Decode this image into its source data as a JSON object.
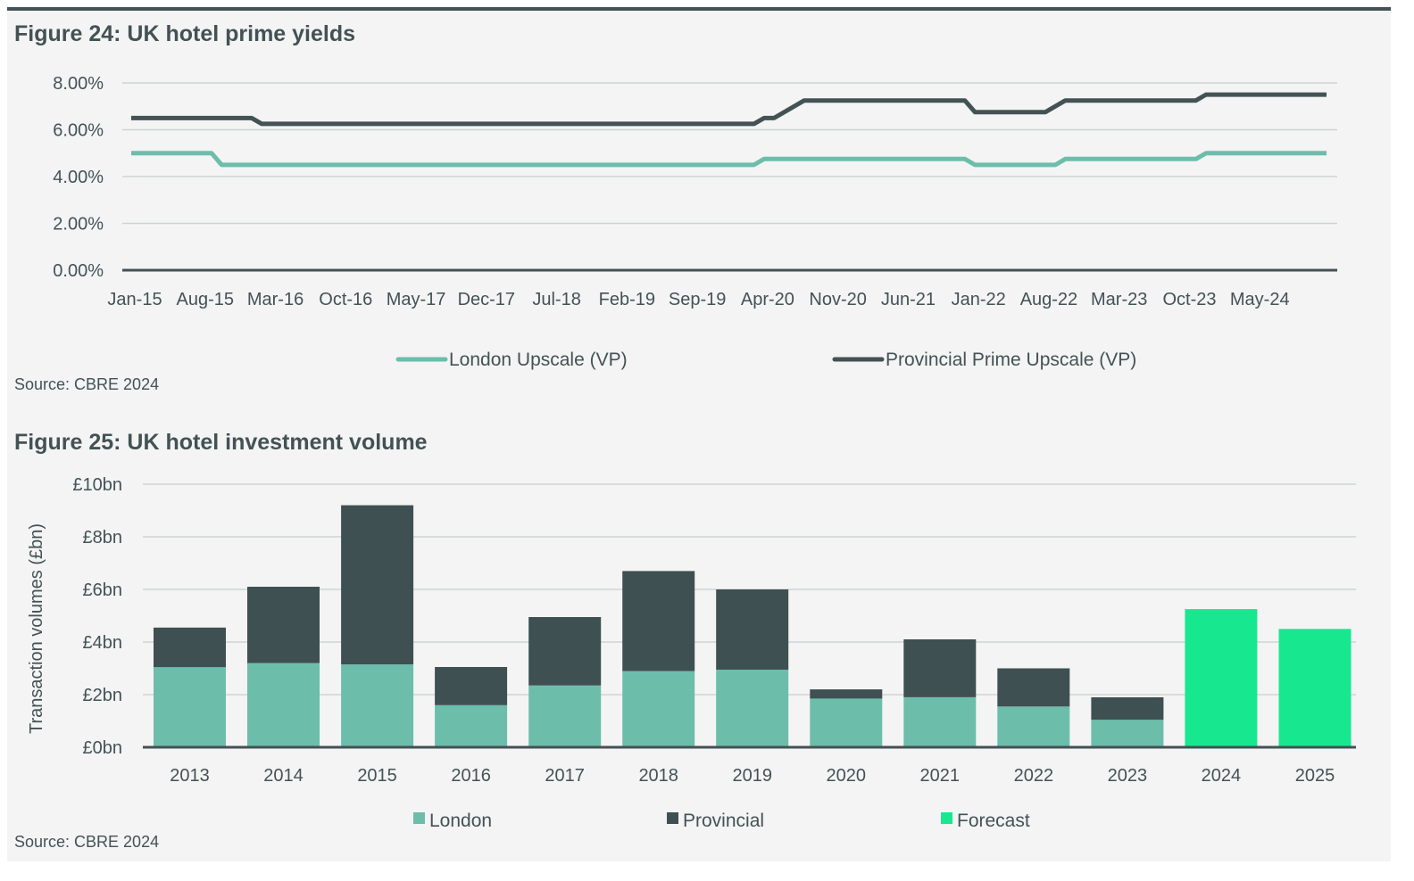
{
  "figure24": {
    "title": "Figure 24: UK hotel prime yields",
    "source": "Source: CBRE 2024"
  },
  "figure25": {
    "title": "Figure 25: UK hotel investment volume",
    "source": "Source: CBRE 2024"
  },
  "colors": {
    "london_line": "#6dbdab",
    "provincial_line": "#435254",
    "london_bar": "#6dbdab",
    "provincial_bar": "#3f5052",
    "forecast_bar": "#17e88f",
    "grid": "#cfd3d3",
    "axis": "#435254"
  },
  "chart_data": [
    {
      "type": "line",
      "title": "Figure 24: UK hotel prime yields",
      "xlabel": "",
      "ylabel": "",
      "x_tick_labels": [
        "Jan-15",
        "Aug-15",
        "Mar-16",
        "Oct-16",
        "May-17",
        "Dec-17",
        "Jul-18",
        "Feb-19",
        "Sep-19",
        "Apr-20",
        "Nov-20",
        "Jun-21",
        "Jan-22",
        "Aug-22",
        "Mar-23",
        "Oct-23",
        "May-24"
      ],
      "y_tick_labels": [
        "0.00%",
        "2.00%",
        "4.00%",
        "6.00%",
        "8.00%"
      ],
      "ylim": [
        0,
        8
      ],
      "x_range": [
        "Jan-15",
        "Dec-24"
      ],
      "grid": true,
      "legend_position": "bottom",
      "series": [
        {
          "name": "London Upscale (VP)",
          "color_key": "london_line",
          "points": [
            [
              "Jan-15",
              5.0
            ],
            [
              "Sep-15",
              5.0
            ],
            [
              "Oct-15",
              4.5
            ],
            [
              "Mar-20",
              4.5
            ],
            [
              "Apr-20",
              4.75
            ],
            [
              "Dec-21",
              4.75
            ],
            [
              "Jan-22",
              4.5
            ],
            [
              "Sep-22",
              4.5
            ],
            [
              "Oct-22",
              4.75
            ],
            [
              "Nov-23",
              4.75
            ],
            [
              "Dec-23",
              5.0
            ],
            [
              "Dec-24",
              5.0
            ]
          ]
        },
        {
          "name": "Provincial Prime Upscale (VP)",
          "color_key": "provincial_line",
          "points": [
            [
              "Jan-15",
              6.5
            ],
            [
              "Jan-16",
              6.5
            ],
            [
              "Feb-16",
              6.25
            ],
            [
              "Mar-20",
              6.25
            ],
            [
              "Apr-20",
              6.5
            ],
            [
              "May-20",
              6.5
            ],
            [
              "Aug-20",
              7.25
            ],
            [
              "Dec-21",
              7.25
            ],
            [
              "Jan-22",
              6.75
            ],
            [
              "Aug-22",
              6.75
            ],
            [
              "Oct-22",
              7.25
            ],
            [
              "Nov-23",
              7.25
            ],
            [
              "Dec-23",
              7.5
            ],
            [
              "Dec-24",
              7.5
            ]
          ]
        }
      ]
    },
    {
      "type": "bar",
      "stacked": true,
      "title": "Figure 25: UK hotel investment volume",
      "xlabel": "",
      "ylabel": "Transaction volumes (£bn)",
      "y_tick_labels": [
        "£0bn",
        "£2bn",
        "£4bn",
        "£6bn",
        "£8bn",
        "£10bn"
      ],
      "ylim": [
        0,
        10
      ],
      "grid": true,
      "legend_position": "bottom",
      "categories": [
        "2013",
        "2014",
        "2015",
        "2016",
        "2017",
        "2018",
        "2019",
        "2020",
        "2021",
        "2022",
        "2023",
        "2024",
        "2025"
      ],
      "series": [
        {
          "name": "London",
          "color_key": "london_bar",
          "values": [
            3.05,
            3.2,
            3.15,
            1.6,
            2.35,
            2.9,
            2.95,
            1.85,
            1.9,
            1.55,
            1.05,
            0,
            0
          ]
        },
        {
          "name": "Provincial",
          "color_key": "provincial_bar",
          "values": [
            1.5,
            2.9,
            6.05,
            1.45,
            2.6,
            3.8,
            3.05,
            0.35,
            2.2,
            1.45,
            0.85,
            0,
            0
          ]
        },
        {
          "name": "Forecast",
          "color_key": "forecast_bar",
          "values": [
            0,
            0,
            0,
            0,
            0,
            0,
            0,
            0,
            0,
            0,
            0,
            5.25,
            4.5
          ]
        }
      ]
    }
  ]
}
